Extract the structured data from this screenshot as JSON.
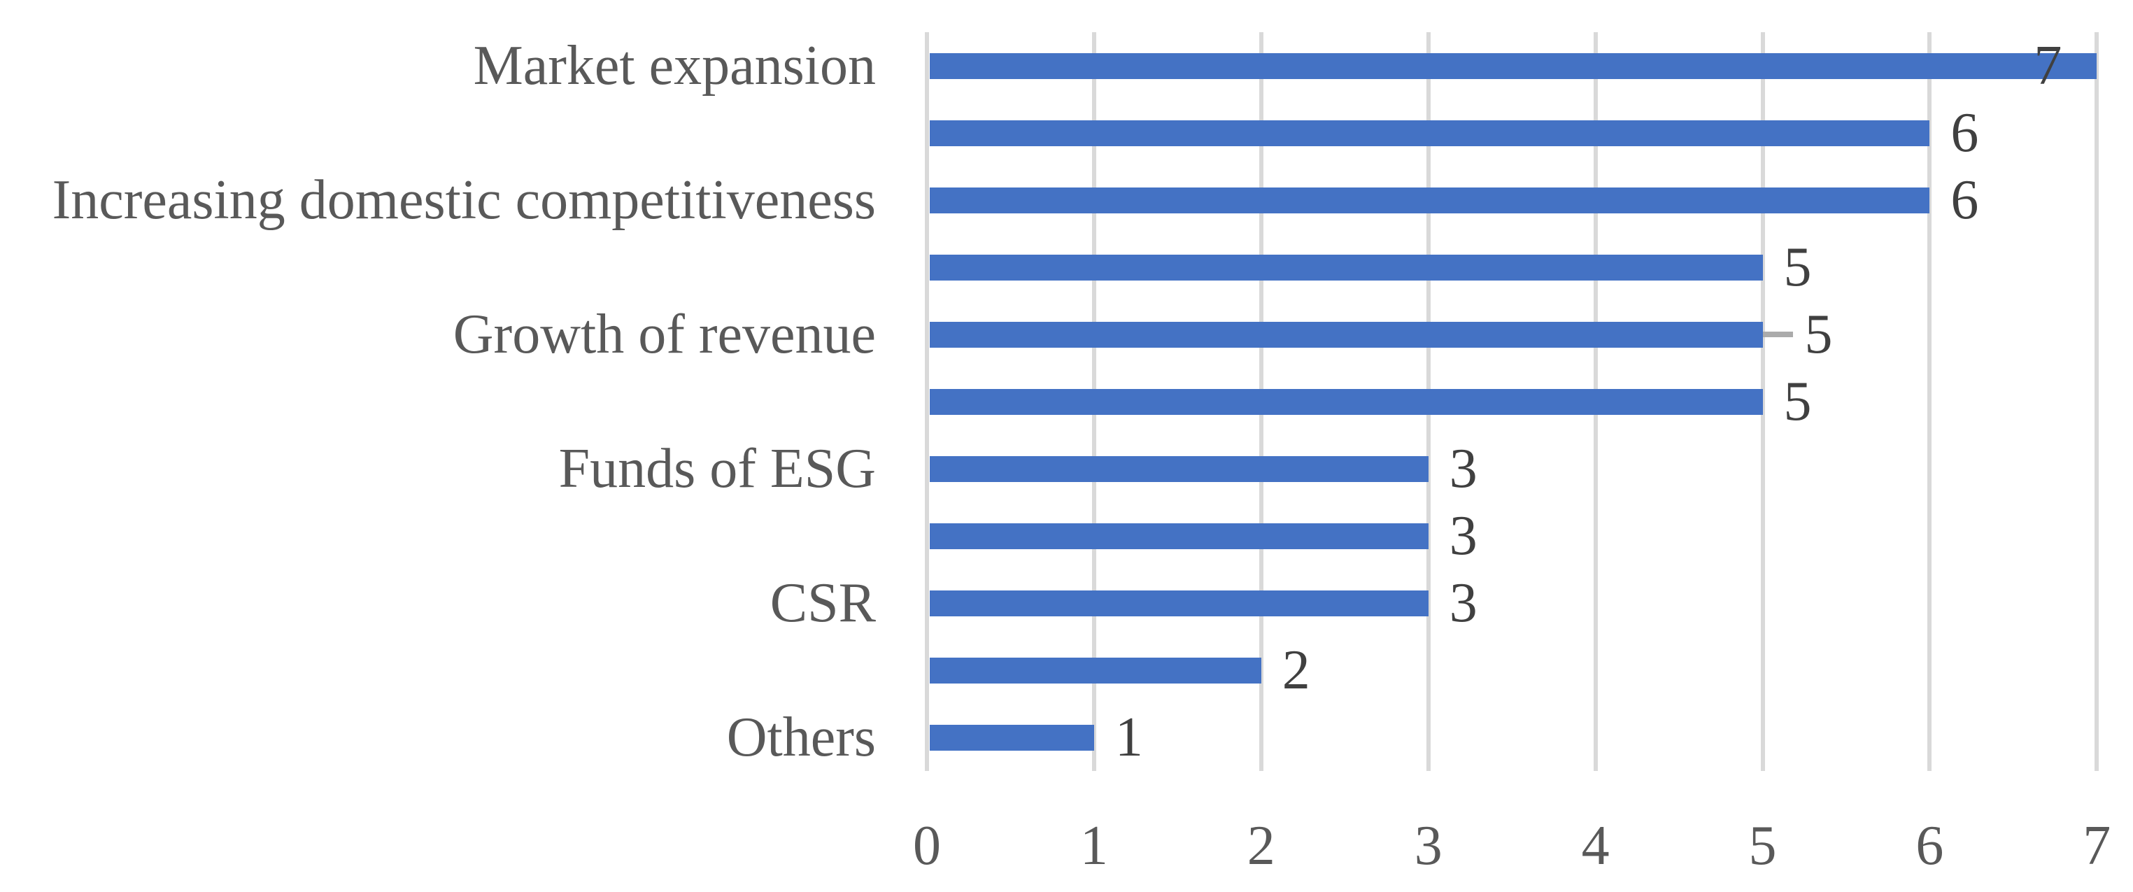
{
  "chart_data": {
    "type": "bar",
    "orientation": "horizontal",
    "title": "",
    "xlabel": "",
    "ylabel": "",
    "categories": [
      "Market expansion",
      "",
      "Increasing domestic competitiveness",
      "",
      "Growth of revenue",
      "",
      "Funds of ESG",
      "",
      "CSR",
      "",
      "Others"
    ],
    "values": [
      7,
      6,
      6,
      5,
      5,
      5,
      3,
      3,
      3,
      2,
      1
    ],
    "data_labels": [
      "7",
      "6",
      "6",
      "5",
      "5",
      "5",
      "3",
      "3",
      "3",
      "2",
      "1"
    ],
    "x_ticks": [
      "0",
      "1",
      "2",
      "3",
      "4",
      "5",
      "6",
      "7"
    ],
    "xlim": [
      0,
      7
    ],
    "grid": true,
    "legend_position": "none",
    "error_dash": {
      "row": 4,
      "at_value": 5
    }
  },
  "colors": {
    "bar": "#4472C4",
    "gridline": "#D9D9D9",
    "category_text": "#595959",
    "axis_text": "#595959",
    "value_text": "#404040",
    "error_dash": "#ABABAB",
    "background": "#FFFFFF"
  }
}
